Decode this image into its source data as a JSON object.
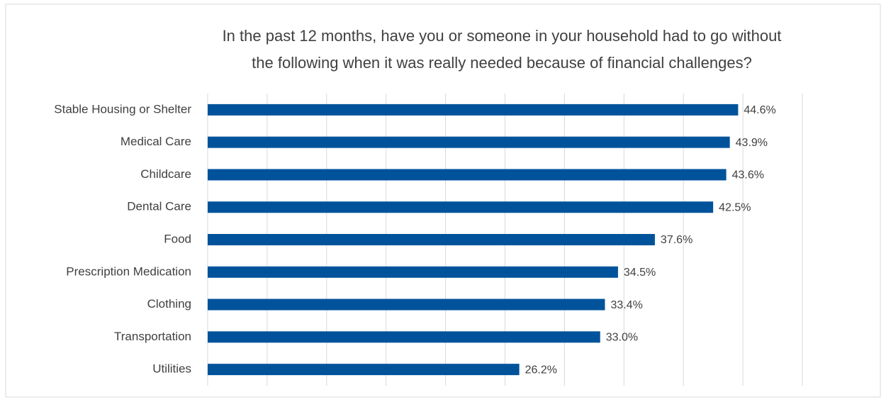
{
  "chart_data": {
    "type": "bar",
    "orientation": "horizontal",
    "title": [
      "In the past 12 months, have you or someone in your household had to go without",
      "the following when it was really needed because of financial challenges?"
    ],
    "categories": [
      "Stable Housing or Shelter",
      "Medical Care",
      "Childcare",
      "Dental Care",
      "Food",
      "Prescription Medication",
      "Clothing",
      "Transportation",
      "Utilities"
    ],
    "values": [
      44.6,
      43.9,
      43.6,
      42.5,
      37.6,
      34.5,
      33.4,
      33.0,
      26.2
    ],
    "value_labels": [
      "44.6%",
      "43.9%",
      "43.6%",
      "42.5%",
      "37.6%",
      "34.5%",
      "33.4%",
      "33.0%",
      "26.2%"
    ],
    "color": "#00539b",
    "xlim": [
      0,
      50
    ],
    "xticks": [
      0,
      5,
      10,
      15,
      20,
      25,
      30,
      35,
      40,
      45,
      50
    ],
    "grid": true
  }
}
